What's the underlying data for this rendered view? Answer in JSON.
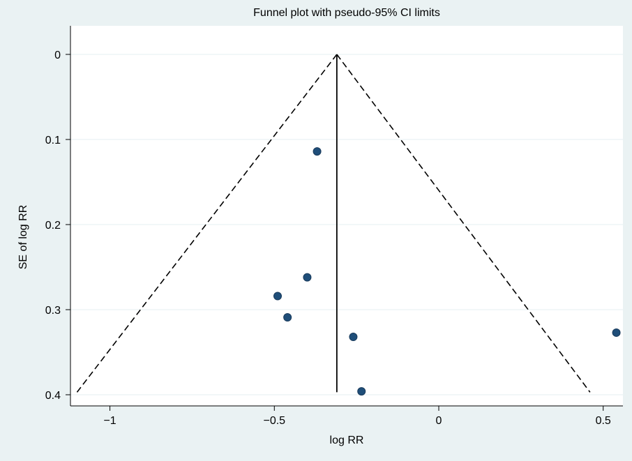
{
  "chart_data": {
    "type": "scatter",
    "title": "Funnel plot with pseudo-95% CI limits",
    "xlabel": "log RR",
    "ylabel": "SE of log RR",
    "xlim": [
      -1.12,
      0.56
    ],
    "ylim": [
      0,
      0.4
    ],
    "y_reversed": true,
    "x_ticks": [
      -1,
      -0.5,
      0,
      0.5
    ],
    "x_tick_labels": [
      "−1",
      "−0.5",
      "0",
      "0.5"
    ],
    "y_ticks": [
      0,
      0.1,
      0.2,
      0.3,
      0.4
    ],
    "y_tick_labels": [
      "0",
      "0.1",
      "0.2",
      "0.3",
      "0.4"
    ],
    "grid": true,
    "pooled_estimate": -0.31,
    "ci_limits": {
      "apex": [
        -0.31,
        0
      ],
      "left_base": [
        -1.1,
        0.397
      ],
      "right_base": [
        0.46,
        0.397
      ]
    },
    "points": [
      {
        "x": -0.37,
        "y": 0.114
      },
      {
        "x": -0.4,
        "y": 0.262
      },
      {
        "x": -0.49,
        "y": 0.284
      },
      {
        "x": -0.46,
        "y": 0.309
      },
      {
        "x": -0.26,
        "y": 0.332
      },
      {
        "x": -0.235,
        "y": 0.396
      },
      {
        "x": 0.54,
        "y": 0.327
      }
    ],
    "colors": {
      "background": "#eaf2f3",
      "plot_area": "#ffffff",
      "marker": "#1f4e79"
    }
  }
}
